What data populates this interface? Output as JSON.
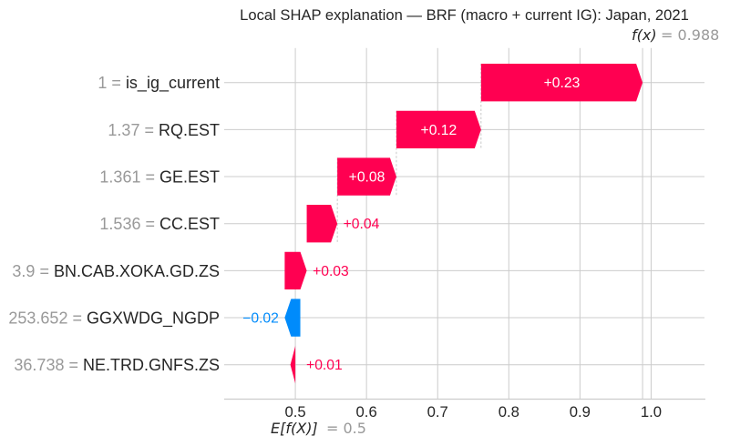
{
  "chart_data": {
    "type": "waterfall",
    "title": "Local SHAP explanation — BRF (macro + current IG): Japan, 2021",
    "xlabel": "",
    "ylabel": "",
    "xlim": [
      0.4,
      1.075
    ],
    "xticks": [
      0.5,
      0.6,
      0.7,
      0.8,
      0.9,
      1.0
    ],
    "xtick_labels": [
      "0.5",
      "0.6",
      "0.7",
      "0.8",
      "0.9",
      "1.0"
    ],
    "grid": true,
    "fx": 0.988,
    "fx_label": "f(x)",
    "fx_text": "= 0.988",
    "base_value": 0.5,
    "base_label": "E[f(X)]",
    "base_text": "= 0.5",
    "separator": " = ",
    "colors": {
      "positive": "#ff0051",
      "negative": "#008bfb",
      "grid": "#cccccc",
      "connector": "#bbbbbb"
    },
    "features": [
      {
        "name": "is_ig_current",
        "value_text": "1",
        "shap": 0.227,
        "label": "+0.23"
      },
      {
        "name": "RQ.EST",
        "value_text": "1.37",
        "shap": 0.119,
        "label": "+0.12"
      },
      {
        "name": "GE.EST",
        "value_text": "1.361",
        "shap": 0.083,
        "label": "+0.08"
      },
      {
        "name": "CC.EST",
        "value_text": "1.536",
        "shap": 0.043,
        "label": "+0.04"
      },
      {
        "name": "BN.CAB.XOKA.GD.ZS",
        "value_text": "3.9",
        "shap": 0.031,
        "label": "+0.03"
      },
      {
        "name": "GGXWDG_NGDP",
        "value_text": "253.652",
        "shap": -0.022,
        "label": "−0.02"
      },
      {
        "name": "NE.TRD.GNFS.ZS",
        "value_text": "36.738",
        "shap": 0.007,
        "label": "+0.01"
      }
    ]
  }
}
